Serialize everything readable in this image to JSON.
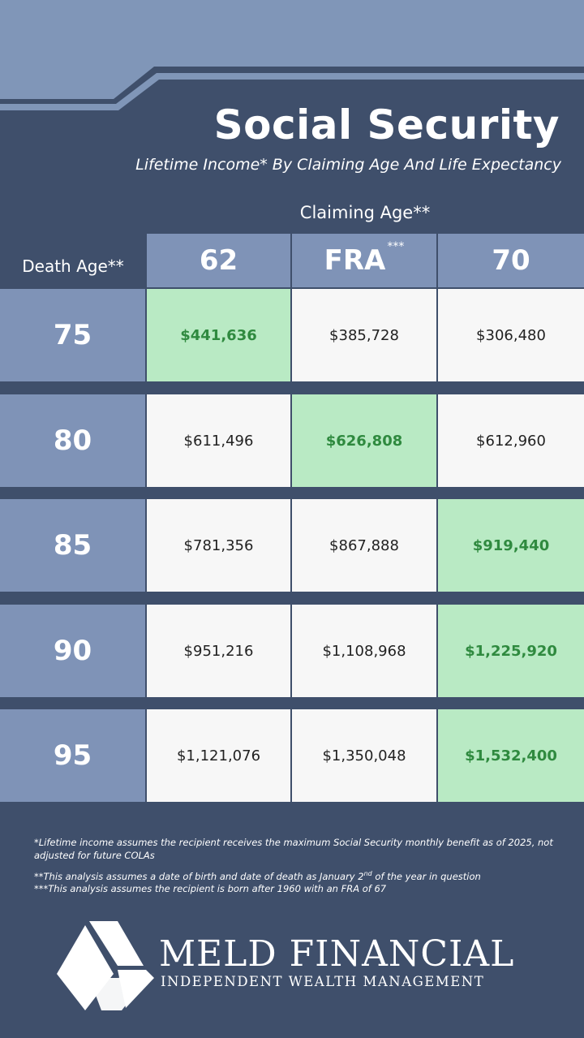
{
  "header": {
    "title": "Social Security",
    "subtitle": "Lifetime Income* By Claiming Age And Life Expectancy"
  },
  "table": {
    "column_group": "Claiming Age**",
    "row_header": "Death Age**",
    "columns": [
      {
        "text": "62"
      },
      {
        "text": "FRA",
        "sup": "***"
      },
      {
        "text": "70"
      }
    ],
    "rows": [
      [
        "75",
        "$441,636",
        "$385,728",
        "$306,480"
      ],
      [
        "80",
        "$611,496",
        "$626,808",
        "$612,960"
      ],
      [
        "85",
        "$781,356",
        "$867,888",
        "$919,440"
      ],
      [
        "90",
        "$951,216",
        "$1,108,968",
        "$1,225,920"
      ],
      [
        "95",
        "$1,121,076",
        "$1,350,048",
        "$1,532,400"
      ]
    ]
  },
  "footnotes": [
    {
      "text": "*Lifetime income assumes the recipient receives the maximum Social Security monthly benefit as of 2025, not adjusted for future COLAs"
    },
    {
      "text": "**This analysis assumes a date of birth and date of death as January 2",
      "sup": "nd",
      "after": " of the year in question"
    },
    {
      "text": "***This analysis assumes the recipient is born after 1960 with an FRA of 67"
    }
  ],
  "logo": {
    "name": "MELD FINANCIAL",
    "tagline": "INDEPENDENT WEALTH MANAGEMENT"
  }
}
